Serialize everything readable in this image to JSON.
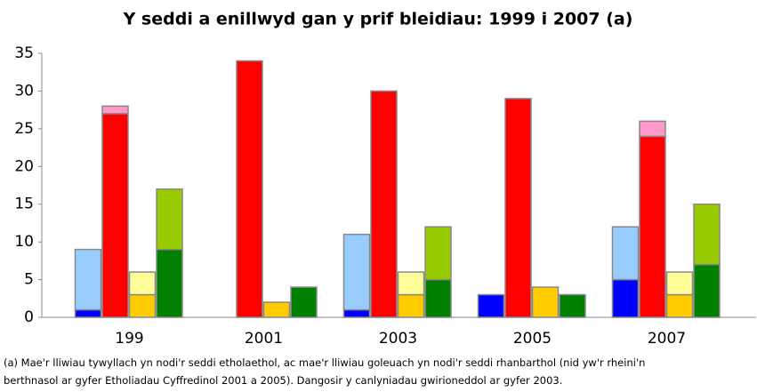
{
  "chart_data": {
    "type": "stacked_bar",
    "title": "Y seddi a enillwyd gan y prif bleidiau: 1999 i 2007 (a)",
    "categories": [
      "199",
      "2001",
      "2003",
      "2005",
      "2007"
    ],
    "series": [
      {
        "layers": [
          {
            "color": "#0000ff",
            "values": [
              1,
              0,
              1,
              3,
              5
            ]
          },
          {
            "color": "#99ccff",
            "values": [
              8,
              null,
              10,
              null,
              7
            ]
          }
        ]
      },
      {
        "layers": [
          {
            "color": "#ff0000",
            "values": [
              27,
              34,
              30,
              29,
              24
            ]
          },
          {
            "color": "#ff99cc",
            "values": [
              1,
              null,
              null,
              null,
              2
            ]
          }
        ]
      },
      {
        "layers": [
          {
            "color": "#ffcc00",
            "values": [
              3,
              2,
              3,
              4,
              3
            ]
          },
          {
            "color": "#ffff99",
            "values": [
              3,
              null,
              3,
              null,
              3
            ]
          }
        ]
      },
      {
        "layers": [
          {
            "color": "#008000",
            "values": [
              9,
              4,
              5,
              3,
              7
            ]
          },
          {
            "color": "#99cc00",
            "values": [
              8,
              null,
              7,
              null,
              8
            ]
          }
        ]
      }
    ],
    "ylim": [
      0,
      35
    ],
    "yticks": [
      0,
      5,
      10,
      15,
      20,
      25,
      30,
      35
    ],
    "grid": false,
    "notes": [
      "(a) Mae'r lliwiau tywyllach yn nodi'r seddi etholaethol, ac mae'r lliwiau goleuach yn nodi'r seddi rhanbarthol (nid yw'r rheini'n",
      "berthnasol ar gyfer Etholiadau Cyffredinol 2001 a 2005). Dangosir y canlyniadau gwirioneddol ar gyfer 2003."
    ]
  }
}
